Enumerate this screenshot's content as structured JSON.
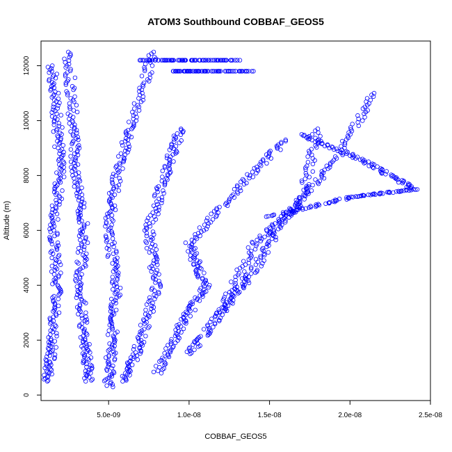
{
  "chart_data": {
    "type": "scatter",
    "title": "ATOM3 Southbound COBBAF_GEOS5",
    "xlabel": "COBBAF_GEOS5",
    "ylabel": "Altitude (m)",
    "xlim": [
      8e-10,
      2.5e-08
    ],
    "ylim": [
      -200,
      12900
    ],
    "x_ticks": [
      5e-09,
      1e-08,
      1.5e-08,
      2e-08,
      2.5e-08
    ],
    "x_tick_labels": [
      "5.0e-09",
      "1.0e-08",
      "1.5e-08",
      "2.0e-08",
      "2.5e-08"
    ],
    "y_ticks": [
      0,
      2000,
      4000,
      6000,
      8000,
      10000,
      12000
    ],
    "y_tick_labels": [
      "0",
      "2000",
      "4000",
      "6000",
      "8000",
      "10000",
      "12000"
    ],
    "marker": "open-circle",
    "color": "#0000ff",
    "grid": false,
    "series": [
      {
        "values": [
          [
            1.2e-09,
            500
          ],
          [
            1.5e-09,
            2000
          ],
          [
            1.8e-09,
            4000
          ],
          [
            1.6e-09,
            6000
          ],
          [
            2e-09,
            8000
          ],
          [
            1.8e-09,
            10000
          ],
          [
            1.5e-09,
            12000
          ]
        ]
      },
      {
        "values": [
          [
            3.8e-09,
            500
          ],
          [
            3.5e-09,
            2000
          ],
          [
            3.2e-09,
            4000
          ],
          [
            3.5e-09,
            6000
          ],
          [
            3e-09,
            8000
          ],
          [
            2.8e-09,
            10000
          ],
          [
            2.5e-09,
            12500
          ]
        ]
      },
      {
        "values": [
          [
            5e-09,
            300
          ],
          [
            5.2e-09,
            2000
          ],
          [
            5.5e-09,
            4000
          ],
          [
            5e-09,
            6000
          ],
          [
            5.5e-09,
            8000
          ],
          [
            6.5e-09,
            10000
          ],
          [
            7.8e-09,
            12500
          ]
        ]
      },
      {
        "values": [
          [
            6e-09,
            500
          ],
          [
            7e-09,
            2000
          ],
          [
            8e-09,
            4000
          ],
          [
            7.5e-09,
            6000
          ],
          [
            8.5e-09,
            8000
          ],
          [
            9.5e-09,
            9700
          ]
        ]
      },
      {
        "values": [
          [
            8e-09,
            800
          ],
          [
            9.5e-09,
            2500
          ],
          [
            1.1e-08,
            4000
          ],
          [
            1e-08,
            5500
          ],
          [
            1.3e-08,
            7500
          ],
          [
            1.6e-08,
            9300
          ]
        ]
      },
      {
        "values": [
          [
            1e-08,
            1500
          ],
          [
            1.2e-08,
            3000
          ],
          [
            1.4e-08,
            4500
          ],
          [
            1.6e-08,
            6500
          ],
          [
            1.9e-08,
            8500
          ],
          [
            2.15e-08,
            11000
          ]
        ]
      },
      {
        "values": [
          [
            1.5e-08,
            6500
          ],
          [
            2e-08,
            7200
          ],
          [
            2.4e-08,
            7500
          ],
          [
            2.1e-08,
            8500
          ],
          [
            1.7e-08,
            9500
          ]
        ]
      },
      {
        "values": [
          [
            1.2e-08,
            3000
          ],
          [
            1.4e-08,
            5500
          ],
          [
            1.7e-08,
            7000
          ],
          [
            1.8e-08,
            9700
          ]
        ]
      },
      {
        "values": [
          [
            9e-09,
            11800
          ],
          [
            1.1e-08,
            11800
          ],
          [
            1.4e-08,
            11800
          ]
        ]
      },
      {
        "values": [
          [
            7e-09,
            12200
          ],
          [
            1e-08,
            12200
          ],
          [
            1.3e-08,
            12200
          ]
        ]
      }
    ]
  }
}
